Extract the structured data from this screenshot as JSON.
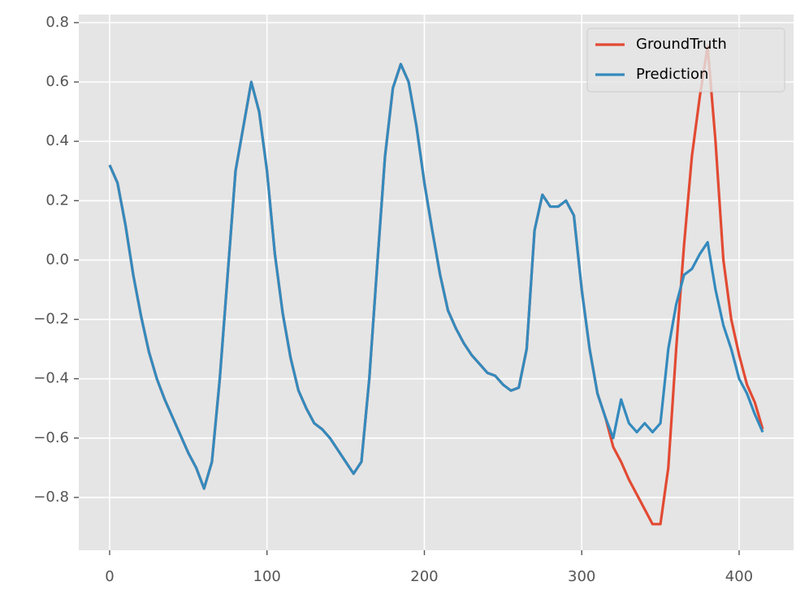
{
  "chart_data": {
    "type": "line",
    "x": [
      0,
      5,
      10,
      15,
      20,
      25,
      30,
      35,
      40,
      45,
      50,
      55,
      60,
      65,
      70,
      75,
      80,
      85,
      90,
      95,
      100,
      105,
      110,
      115,
      120,
      125,
      130,
      135,
      140,
      145,
      150,
      155,
      160,
      165,
      170,
      175,
      180,
      185,
      190,
      195,
      200,
      205,
      210,
      215,
      220,
      225,
      230,
      235,
      240,
      245,
      250,
      255,
      260,
      265,
      270,
      275,
      280,
      285,
      290,
      295,
      300,
      305,
      310,
      315,
      320,
      325,
      330,
      335,
      340,
      345,
      350,
      355,
      360,
      365,
      370,
      375,
      380,
      385,
      390,
      395,
      400,
      405,
      410,
      415
    ],
    "series": [
      {
        "name": "GroundTruth",
        "color": "#E24A33",
        "values": [
          0.32,
          0.26,
          0.12,
          -0.05,
          -0.19,
          -0.31,
          -0.4,
          -0.47,
          -0.53,
          -0.59,
          -0.65,
          -0.7,
          -0.77,
          -0.68,
          -0.4,
          -0.05,
          0.3,
          0.45,
          0.6,
          0.5,
          0.3,
          0.02,
          -0.18,
          -0.33,
          -0.44,
          -0.5,
          -0.55,
          -0.57,
          -0.6,
          -0.64,
          -0.68,
          -0.72,
          -0.68,
          -0.4,
          -0.02,
          0.35,
          0.58,
          0.66,
          0.6,
          0.45,
          0.26,
          0.1,
          -0.05,
          -0.17,
          -0.23,
          -0.28,
          -0.32,
          -0.35,
          -0.38,
          -0.39,
          -0.42,
          -0.44,
          -0.43,
          -0.3,
          0.1,
          0.22,
          0.18,
          0.18,
          0.2,
          0.15,
          -0.1,
          -0.3,
          -0.45,
          -0.53,
          -0.63,
          -0.68,
          -0.74,
          -0.79,
          -0.84,
          -0.89,
          -0.89,
          -0.7,
          -0.3,
          0.05,
          0.35,
          0.55,
          0.72,
          0.4,
          0.0,
          -0.2,
          -0.32,
          -0.42,
          -0.48,
          -0.57
        ]
      },
      {
        "name": "Prediction",
        "color": "#348ABD",
        "values": [
          0.32,
          0.26,
          0.12,
          -0.05,
          -0.19,
          -0.31,
          -0.4,
          -0.47,
          -0.53,
          -0.59,
          -0.65,
          -0.7,
          -0.77,
          -0.68,
          -0.4,
          -0.05,
          0.3,
          0.45,
          0.6,
          0.5,
          0.3,
          0.02,
          -0.18,
          -0.33,
          -0.44,
          -0.5,
          -0.55,
          -0.57,
          -0.6,
          -0.64,
          -0.68,
          -0.72,
          -0.68,
          -0.4,
          -0.02,
          0.35,
          0.58,
          0.66,
          0.6,
          0.45,
          0.26,
          0.1,
          -0.05,
          -0.17,
          -0.23,
          -0.28,
          -0.32,
          -0.35,
          -0.38,
          -0.39,
          -0.42,
          -0.44,
          -0.43,
          -0.3,
          0.1,
          0.22,
          0.18,
          0.18,
          0.2,
          0.15,
          -0.1,
          -0.3,
          -0.45,
          -0.53,
          -0.6,
          -0.47,
          -0.55,
          -0.58,
          -0.55,
          -0.58,
          -0.55,
          -0.3,
          -0.15,
          -0.05,
          -0.03,
          0.02,
          0.06,
          -0.1,
          -0.22,
          -0.3,
          -0.4,
          -0.45,
          -0.52,
          -0.58
        ]
      }
    ],
    "xlim": [
      -19.6,
      434.6
    ],
    "ylim": [
      -0.978,
      0.827
    ],
    "xticks": [
      0,
      100,
      200,
      300,
      400
    ],
    "yticks": [
      {
        "value": -0.8,
        "label": "−0.8"
      },
      {
        "value": -0.6,
        "label": "−0.6"
      },
      {
        "value": -0.4,
        "label": "−0.4"
      },
      {
        "value": -0.2,
        "label": "−0.2"
      },
      {
        "value": 0.0,
        "label": "0.0"
      },
      0.2,
      0.4,
      0.6,
      0.8
    ],
    "grid": true,
    "legend": "upper-right"
  }
}
